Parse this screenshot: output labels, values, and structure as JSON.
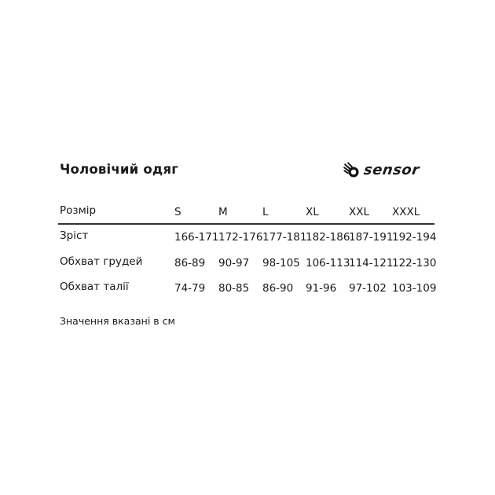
{
  "title": "Чоловічий одяг",
  "logo": {
    "brand": "sensor",
    "icon": "hand-icon"
  },
  "table": {
    "header": {
      "label": "Розмір",
      "sizes": [
        "S",
        "M",
        "L",
        "XL",
        "XXL",
        "XXXL"
      ]
    },
    "rows": [
      {
        "label": "Зріст",
        "values": [
          "166-171",
          "172-176",
          "177-181",
          "182-186",
          "187-191",
          "192-194"
        ]
      },
      {
        "label": "Обхват грудей",
        "values": [
          "86-89",
          "90-97",
          "98-105",
          "106-113",
          "114-121",
          "122-130"
        ]
      },
      {
        "label": "Обхват талії",
        "values": [
          "74-79",
          "80-85",
          "86-90",
          "91-96",
          "97-102",
          "103-109"
        ]
      }
    ]
  },
  "note": "Значення вказані в см"
}
